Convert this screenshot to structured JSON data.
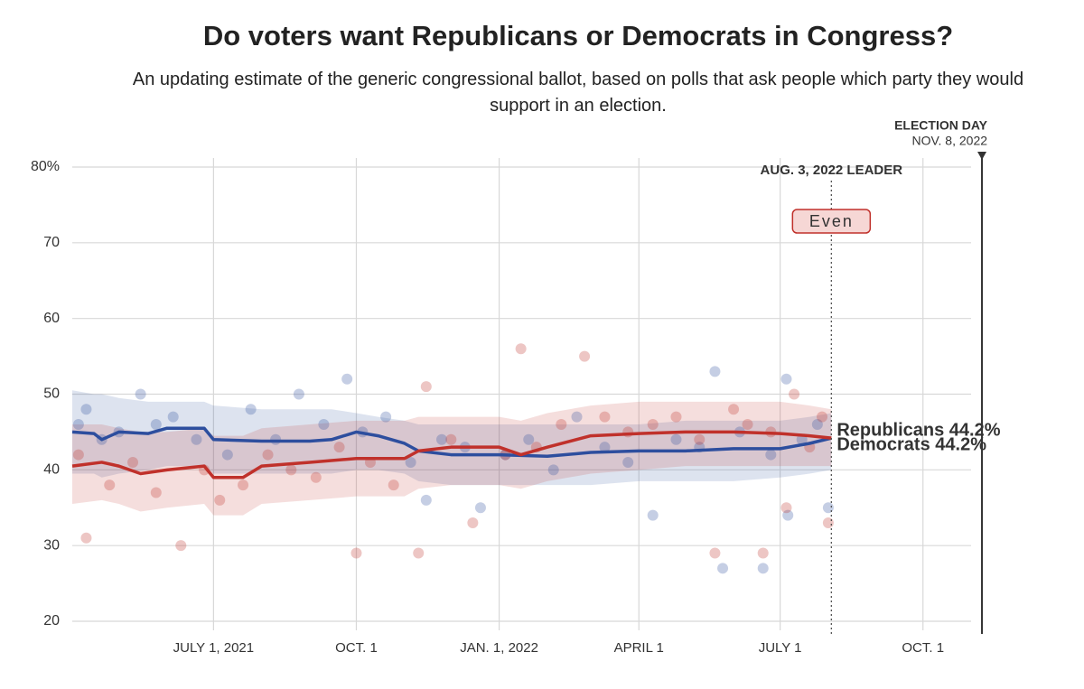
{
  "chart_data": {
    "type": "line",
    "title": "Do voters want Republicans or Democrats in Congress?",
    "subtitle": "An updating estimate of the generic congressional ballot, based on polls that ask people which party they would support in an election.",
    "xlim": [
      "2021-04-01",
      "2022-11-01"
    ],
    "xticks": [
      {
        "value": "2021-07-01",
        "label": "JULY 1, 2021"
      },
      {
        "value": "2021-10-01",
        "label": "OCT. 1"
      },
      {
        "value": "2022-01-01",
        "label": "JAN. 1, 2022"
      },
      {
        "value": "2022-04-01",
        "label": "APRIL 1"
      },
      {
        "value": "2022-07-01",
        "label": "JULY 1"
      },
      {
        "value": "2022-10-01",
        "label": "OCT. 1"
      }
    ],
    "ylim": [
      20,
      80
    ],
    "yticks": [
      20,
      30,
      40,
      50,
      60,
      70,
      {
        "value": 80,
        "label": "80%"
      }
    ],
    "grid": true,
    "election_day": {
      "date": "2022-11-08",
      "label": "ELECTION DAY",
      "sublabel": "NOV. 8, 2022"
    },
    "leader": {
      "date": "2022-08-03",
      "label": "AUG. 3, 2022 LEADER",
      "text": "Even"
    },
    "series": [
      {
        "name": "Democrats",
        "end_label": "Democrats 44.2%",
        "color": "#2d4e9e",
        "x": [
          "2021-04-01",
          "2021-04-15",
          "2021-04-20",
          "2021-05-01",
          "2021-05-20",
          "2021-06-01",
          "2021-06-25",
          "2021-07-01",
          "2021-08-01",
          "2021-09-01",
          "2021-09-15",
          "2021-10-01",
          "2021-10-15",
          "2021-11-01",
          "2021-11-10",
          "2021-12-01",
          "2022-01-01",
          "2022-02-01",
          "2022-03-01",
          "2022-04-01",
          "2022-05-01",
          "2022-06-01",
          "2022-07-01",
          "2022-07-20",
          "2022-08-03"
        ],
        "values": [
          45,
          44.8,
          44,
          45,
          44.8,
          45.5,
          45.5,
          44,
          43.8,
          43.8,
          44,
          45,
          44.5,
          43.5,
          42.5,
          42,
          42,
          41.8,
          42.3,
          42.5,
          42.5,
          42.8,
          42.8,
          43.5,
          44.2
        ],
        "upper": [
          50.5,
          50,
          50,
          49.5,
          49,
          49,
          49,
          48.5,
          48,
          48,
          48,
          47.5,
          47,
          46.5,
          46,
          46,
          46,
          46,
          46,
          46,
          46.5,
          46.5,
          46.5,
          47,
          47.5
        ],
        "lower": [
          39.5,
          39.5,
          39,
          39.5,
          40,
          40.5,
          40.5,
          39.5,
          39.5,
          39.5,
          39.5,
          40,
          40,
          39.5,
          38.5,
          38,
          38,
          38,
          38,
          38.5,
          38.5,
          38.5,
          39,
          39.5,
          40
        ],
        "polls": {
          "x": [
            "2021-04-05",
            "2021-04-10",
            "2021-04-20",
            "2021-05-01",
            "2021-05-15",
            "2021-05-25",
            "2021-06-05",
            "2021-06-20",
            "2021-07-10",
            "2021-07-25",
            "2021-08-10",
            "2021-08-25",
            "2021-09-10",
            "2021-09-25",
            "2021-10-05",
            "2021-10-20",
            "2021-11-05",
            "2021-11-15",
            "2021-11-25",
            "2021-12-10",
            "2021-12-20",
            "2022-01-05",
            "2022-01-20",
            "2022-02-05",
            "2022-02-20",
            "2022-03-10",
            "2022-03-25",
            "2022-04-10",
            "2022-04-25",
            "2022-05-10",
            "2022-05-20",
            "2022-05-25",
            "2022-06-05",
            "2022-06-20",
            "2022-06-25",
            "2022-07-05",
            "2022-07-06",
            "2022-07-15",
            "2022-07-25",
            "2022-08-01"
          ],
          "values": [
            46,
            48,
            44,
            45,
            50,
            46,
            47,
            44,
            42,
            48,
            44,
            50,
            46,
            52,
            45,
            47,
            41,
            36,
            44,
            43,
            35,
            42,
            44,
            40,
            47,
            43,
            41,
            34,
            44,
            43,
            53,
            27,
            45,
            27,
            42,
            52,
            34,
            44,
            46,
            35
          ]
        }
      },
      {
        "name": "Republicans",
        "end_label": "Republicans 44.2%",
        "color": "#c0312b",
        "x": [
          "2021-04-01",
          "2021-04-20",
          "2021-05-01",
          "2021-05-15",
          "2021-06-01",
          "2021-06-25",
          "2021-07-01",
          "2021-07-20",
          "2021-08-01",
          "2021-09-01",
          "2021-10-01",
          "2021-10-15",
          "2021-11-01",
          "2021-11-10",
          "2021-12-01",
          "2022-01-01",
          "2022-01-15",
          "2022-02-01",
          "2022-03-01",
          "2022-04-01",
          "2022-05-01",
          "2022-06-01",
          "2022-07-01",
          "2022-07-20",
          "2022-08-03"
        ],
        "values": [
          40.5,
          41,
          40.5,
          39.5,
          40,
          40.5,
          39,
          39,
          40.5,
          41,
          41.5,
          41.5,
          41.5,
          42.5,
          43,
          43,
          42,
          43,
          44.5,
          44.8,
          45,
          45,
          44.8,
          44.5,
          44.2
        ],
        "upper": [
          46,
          46,
          45.5,
          45,
          45,
          45.5,
          44.5,
          44.5,
          45.5,
          46,
          46.5,
          46.5,
          46.5,
          47,
          47,
          47,
          46.5,
          47.5,
          48.5,
          49,
          49,
          49,
          49,
          48.5,
          48
        ],
        "lower": [
          35.5,
          36,
          35.5,
          34.5,
          35,
          35.5,
          34,
          34,
          35.5,
          36,
          36.5,
          36.5,
          36.5,
          37.5,
          38,
          38,
          37.5,
          38.5,
          39.5,
          40,
          40.5,
          40.5,
          40.5,
          40.5,
          40.5
        ],
        "polls": {
          "x": [
            "2021-04-05",
            "2021-04-10",
            "2021-04-25",
            "2021-05-10",
            "2021-05-25",
            "2021-06-10",
            "2021-06-25",
            "2021-07-05",
            "2021-07-20",
            "2021-08-05",
            "2021-08-20",
            "2021-09-05",
            "2021-09-20",
            "2021-10-01",
            "2021-10-10",
            "2021-10-25",
            "2021-11-10",
            "2021-11-15",
            "2021-12-01",
            "2021-12-15",
            "2022-01-05",
            "2022-01-15",
            "2022-01-25",
            "2022-02-10",
            "2022-02-25",
            "2022-03-10",
            "2022-03-25",
            "2022-04-10",
            "2022-04-25",
            "2022-05-10",
            "2022-05-20",
            "2022-06-01",
            "2022-06-10",
            "2022-06-20",
            "2022-06-25",
            "2022-07-05",
            "2022-07-10",
            "2022-07-20",
            "2022-07-28",
            "2022-08-01"
          ],
          "values": [
            42,
            31,
            38,
            41,
            37,
            30,
            40,
            36,
            38,
            42,
            40,
            39,
            43,
            29,
            41,
            38,
            29,
            51,
            44,
            33,
            42,
            56,
            43,
            46,
            55,
            47,
            45,
            46,
            47,
            44,
            29,
            48,
            46,
            29,
            45,
            35,
            50,
            43,
            47,
            33
          ]
        }
      }
    ]
  }
}
